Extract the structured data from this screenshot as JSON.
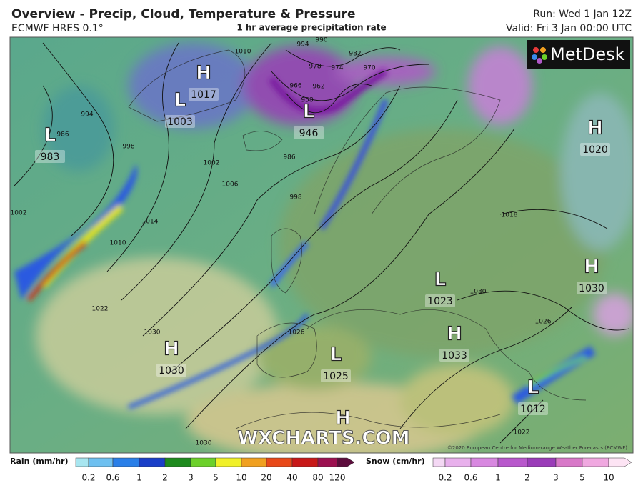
{
  "header": {
    "title": "Overview - Precip, Cloud, Temperature & Pressure",
    "model": "ECMWF HRES 0.1°",
    "subtitle": "1 hr average precipitation rate",
    "run": "Run: Wed 1 Jan 12Z",
    "valid": "Valid: Fri 3 Jan 00:00 UTC"
  },
  "map": {
    "pressure_centers": [
      {
        "type": "H",
        "value": 1017
      },
      {
        "type": "L",
        "value": 1003
      },
      {
        "type": "L",
        "value": 946
      },
      {
        "type": "L",
        "value": 983
      },
      {
        "type": "H",
        "value": 1020
      },
      {
        "type": "L",
        "value": 1023
      },
      {
        "type": "H",
        "value": 1030
      },
      {
        "type": "H",
        "value": 1033
      },
      {
        "type": "H",
        "value": 1030
      },
      {
        "type": "L",
        "value": 1025
      },
      {
        "type": "L",
        "value": 1012
      },
      {
        "type": "H"
      }
    ],
    "isobar_labels": [
      994,
      990,
      982,
      978,
      974,
      970,
      966,
      962,
      958,
      986,
      1002,
      1006,
      998,
      994,
      986,
      998,
      1002,
      1010,
      1014,
      1018,
      1022,
      1026,
      1030,
      1030,
      1026,
      1022,
      1030,
      1010
    ],
    "watermark": "WXCHARTS.COM",
    "logo": "MetDesk",
    "credit": "©2020 European Centre for Medium-range Weather Forecasts (ECMWF)"
  },
  "legend": {
    "rain": {
      "title": "Rain (mm/hr)",
      "labels": [
        0.2,
        0.6,
        1,
        2,
        3,
        5,
        10,
        20,
        40,
        80,
        120
      ],
      "colors": [
        "#a8e6f0",
        "#6ec0f0",
        "#2a7fe8",
        "#1a3fc8",
        "#1e8a1e",
        "#6cd02a",
        "#f0f028",
        "#f0a020",
        "#e84818",
        "#c81818",
        "#9c1050",
        "#5c0c3c"
      ]
    },
    "snow": {
      "title": "Snow (cm/hr)",
      "labels": [
        0.2,
        0.6,
        1,
        2,
        3,
        5,
        10
      ],
      "colors": [
        "#f4d8f4",
        "#e8b0ec",
        "#d888e0",
        "#b858cc",
        "#9a3cb8",
        "#d878c8",
        "#f0a8e0",
        "#fde4f4"
      ]
    }
  }
}
